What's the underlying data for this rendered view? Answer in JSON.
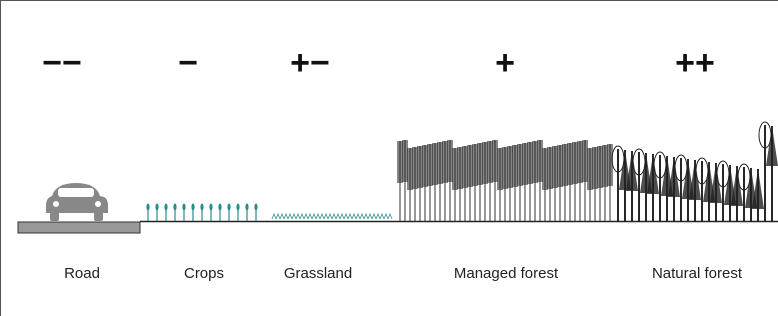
{
  "columns": [
    {
      "symbol": "−−",
      "label": "Road"
    },
    {
      "symbol": "−",
      "label": "Crops"
    },
    {
      "symbol": "+−",
      "label": "Grassland"
    },
    {
      "symbol": "+",
      "label": "Managed forest"
    },
    {
      "symbol": "++",
      "label": "Natural forest"
    }
  ]
}
